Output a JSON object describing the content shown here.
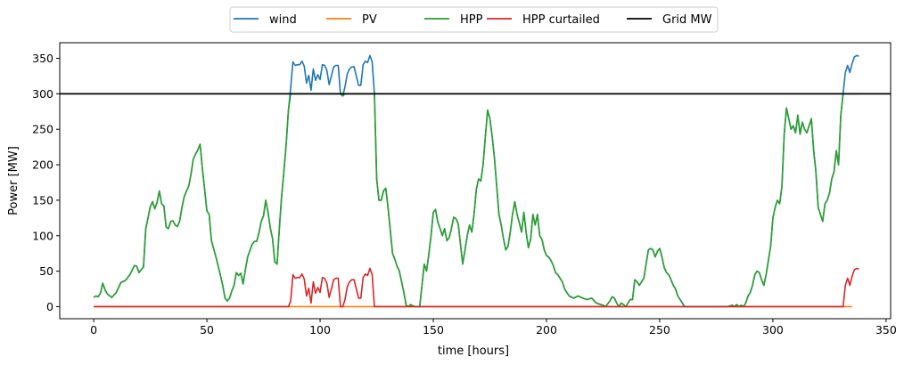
{
  "chart_data": {
    "type": "line",
    "title": "",
    "xlabel": "time [hours]",
    "ylabel": "Power [MW]",
    "xlim": [
      -15,
      352
    ],
    "ylim": [
      -17,
      372
    ],
    "xticks": [
      0,
      50,
      100,
      150,
      200,
      250,
      300,
      350
    ],
    "yticks": [
      0,
      50,
      100,
      150,
      200,
      250,
      300,
      350
    ],
    "grid": false,
    "legend_position": "top-center",
    "legend": [
      "wind",
      "PV",
      "HPP",
      "HPP curtailed",
      "Grid MW"
    ],
    "series": [
      {
        "name": "wind",
        "color": "#1f77b4",
        "points": [
          [
            0,
            13
          ],
          [
            1,
            15
          ],
          [
            2,
            14
          ],
          [
            3,
            19
          ],
          [
            4,
            33
          ],
          [
            5,
            24
          ],
          [
            6,
            18
          ],
          [
            8,
            13
          ],
          [
            10,
            20
          ],
          [
            12,
            34
          ],
          [
            14,
            37
          ],
          [
            16,
            45
          ],
          [
            18,
            58
          ],
          [
            19,
            57
          ],
          [
            20,
            48
          ],
          [
            22,
            56
          ],
          [
            23,
            110
          ],
          [
            24,
            125
          ],
          [
            25,
            141
          ],
          [
            26,
            148
          ],
          [
            27,
            138
          ],
          [
            28,
            147
          ],
          [
            29,
            163
          ],
          [
            30,
            145
          ],
          [
            31,
            142
          ],
          [
            32,
            112
          ],
          [
            33,
            110
          ],
          [
            34,
            120
          ],
          [
            35,
            121
          ],
          [
            36,
            115
          ],
          [
            37,
            113
          ],
          [
            38,
            121
          ],
          [
            39,
            140
          ],
          [
            40,
            155
          ],
          [
            41,
            163
          ],
          [
            42,
            170
          ],
          [
            43,
            187
          ],
          [
            44,
            208
          ],
          [
            45,
            215
          ],
          [
            46,
            221
          ],
          [
            47,
            229
          ],
          [
            48,
            195
          ],
          [
            49,
            165
          ],
          [
            50,
            135
          ],
          [
            51,
            130
          ],
          [
            52,
            93
          ],
          [
            54,
            70
          ],
          [
            56,
            44
          ],
          [
            57,
            30
          ],
          [
            58,
            12
          ],
          [
            59,
            8
          ],
          [
            60,
            12
          ],
          [
            61,
            22
          ],
          [
            62,
            30
          ],
          [
            63,
            48
          ],
          [
            64,
            44
          ],
          [
            65,
            47
          ],
          [
            66,
            32
          ],
          [
            67,
            52
          ],
          [
            68,
            70
          ],
          [
            69,
            79
          ],
          [
            70,
            88
          ],
          [
            71,
            92
          ],
          [
            72,
            92
          ],
          [
            73,
            104
          ],
          [
            74,
            120
          ],
          [
            75,
            128
          ],
          [
            76,
            150
          ],
          [
            77,
            133
          ],
          [
            78,
            111
          ],
          [
            79,
            96
          ],
          [
            80,
            63
          ],
          [
            81,
            60
          ],
          [
            82,
            110
          ],
          [
            83,
            155
          ],
          [
            84,
            190
          ],
          [
            85,
            228
          ],
          [
            86,
            276
          ],
          [
            87,
            308
          ],
          [
            88,
            345
          ],
          [
            89,
            340
          ],
          [
            90,
            341
          ],
          [
            91,
            341
          ],
          [
            92,
            346
          ],
          [
            93,
            339
          ],
          [
            94,
            315
          ],
          [
            95,
            326
          ],
          [
            96,
            305
          ],
          [
            97,
            335
          ],
          [
            98,
            319
          ],
          [
            99,
            327
          ],
          [
            100,
            320
          ],
          [
            101,
            341
          ],
          [
            102,
            340
          ],
          [
            103,
            333
          ],
          [
            104,
            313
          ],
          [
            105,
            325
          ],
          [
            106,
            338
          ],
          [
            107,
            340
          ],
          [
            108,
            340
          ],
          [
            109,
            300
          ],
          [
            110,
            297
          ],
          [
            111,
            310
          ],
          [
            112,
            328
          ],
          [
            113,
            335
          ],
          [
            114,
            338
          ],
          [
            115,
            338
          ],
          [
            116,
            325
          ],
          [
            117,
            312
          ],
          [
            118,
            312
          ],
          [
            119,
            341
          ],
          [
            120,
            346
          ],
          [
            121,
            344
          ],
          [
            122,
            354
          ],
          [
            123,
            345
          ],
          [
            124,
            300
          ],
          [
            125,
            180
          ],
          [
            126,
            150
          ],
          [
            127,
            150
          ],
          [
            128,
            163
          ],
          [
            129,
            167
          ],
          [
            130,
            140
          ],
          [
            131,
            108
          ],
          [
            132,
            75
          ],
          [
            133,
            67
          ],
          [
            134,
            57
          ],
          [
            135,
            50
          ],
          [
            136,
            35
          ],
          [
            137,
            20
          ],
          [
            138,
            2
          ],
          [
            139,
            0
          ],
          [
            140,
            3
          ],
          [
            141,
            1
          ],
          [
            142,
            0
          ],
          [
            144,
            0
          ],
          [
            145,
            30
          ],
          [
            146,
            60
          ],
          [
            147,
            50
          ],
          [
            148,
            73
          ],
          [
            149,
            100
          ],
          [
            150,
            133
          ],
          [
            151,
            137
          ],
          [
            152,
            119
          ],
          [
            153,
            110
          ],
          [
            154,
            100
          ],
          [
            155,
            110
          ],
          [
            156,
            93
          ],
          [
            157,
            97
          ],
          [
            158,
            110
          ],
          [
            159,
            126
          ],
          [
            160,
            124
          ],
          [
            161,
            117
          ],
          [
            162,
            88
          ],
          [
            163,
            60
          ],
          [
            164,
            80
          ],
          [
            165,
            100
          ],
          [
            166,
            115
          ],
          [
            167,
            105
          ],
          [
            168,
            130
          ],
          [
            169,
            165
          ],
          [
            170,
            180
          ],
          [
            171,
            177
          ],
          [
            172,
            200
          ],
          [
            173,
            240
          ],
          [
            174,
            277
          ],
          [
            175,
            265
          ],
          [
            176,
            240
          ],
          [
            177,
            210
          ],
          [
            178,
            170
          ],
          [
            179,
            130
          ],
          [
            180,
            115
          ],
          [
            181,
            96
          ],
          [
            182,
            80
          ],
          [
            183,
            85
          ],
          [
            184,
            105
          ],
          [
            185,
            130
          ],
          [
            186,
            148
          ],
          [
            187,
            130
          ],
          [
            188,
            118
          ],
          [
            189,
            105
          ],
          [
            190,
            133
          ],
          [
            191,
            105
          ],
          [
            192,
            83
          ],
          [
            193,
            95
          ],
          [
            194,
            130
          ],
          [
            195,
            115
          ],
          [
            196,
            130
          ],
          [
            197,
            100
          ],
          [
            198,
            95
          ],
          [
            199,
            80
          ],
          [
            200,
            72
          ],
          [
            201,
            70
          ],
          [
            202,
            65
          ],
          [
            203,
            58
          ],
          [
            204,
            48
          ],
          [
            205,
            45
          ],
          [
            206,
            40
          ],
          [
            207,
            35
          ],
          [
            208,
            25
          ],
          [
            210,
            15
          ],
          [
            212,
            12
          ],
          [
            214,
            15
          ],
          [
            216,
            12
          ],
          [
            218,
            10
          ],
          [
            220,
            12
          ],
          [
            222,
            5
          ],
          [
            224,
            3
          ],
          [
            225,
            2
          ],
          [
            226,
            0
          ],
          [
            228,
            8
          ],
          [
            229,
            14
          ],
          [
            230,
            12
          ],
          [
            231,
            5
          ],
          [
            232,
            0
          ],
          [
            233,
            5
          ],
          [
            234,
            3
          ],
          [
            235,
            0
          ],
          [
            236,
            5
          ],
          [
            237,
            10
          ],
          [
            238,
            10
          ],
          [
            239,
            38
          ],
          [
            240,
            35
          ],
          [
            241,
            30
          ],
          [
            242,
            35
          ],
          [
            243,
            40
          ],
          [
            244,
            60
          ],
          [
            245,
            80
          ],
          [
            246,
            82
          ],
          [
            247,
            80
          ],
          [
            248,
            70
          ],
          [
            249,
            78
          ],
          [
            250,
            82
          ],
          [
            251,
            70
          ],
          [
            252,
            55
          ],
          [
            253,
            48
          ],
          [
            254,
            45
          ],
          [
            255,
            38
          ],
          [
            256,
            30
          ],
          [
            257,
            25
          ],
          [
            258,
            15
          ],
          [
            259,
            10
          ],
          [
            260,
            5
          ],
          [
            261,
            0
          ],
          [
            262,
            0
          ],
          [
            264,
            0
          ],
          [
            270,
            0
          ],
          [
            276,
            0
          ],
          [
            280,
            0
          ],
          [
            282,
            2
          ],
          [
            283,
            0
          ],
          [
            284,
            3
          ],
          [
            285,
            0
          ],
          [
            286,
            2
          ],
          [
            287,
            0
          ],
          [
            288,
            5
          ],
          [
            289,
            15
          ],
          [
            290,
            20
          ],
          [
            291,
            30
          ],
          [
            292,
            45
          ],
          [
            293,
            50
          ],
          [
            294,
            48
          ],
          [
            295,
            38
          ],
          [
            296,
            30
          ],
          [
            297,
            45
          ],
          [
            298,
            65
          ],
          [
            299,
            85
          ],
          [
            300,
            125
          ],
          [
            301,
            140
          ],
          [
            302,
            150
          ],
          [
            303,
            145
          ],
          [
            304,
            170
          ],
          [
            305,
            243
          ],
          [
            306,
            280
          ],
          [
            307,
            265
          ],
          [
            308,
            250
          ],
          [
            309,
            255
          ],
          [
            310,
            245
          ],
          [
            311,
            270
          ],
          [
            312,
            243
          ],
          [
            313,
            260
          ],
          [
            314,
            250
          ],
          [
            315,
            245
          ],
          [
            316,
            255
          ],
          [
            317,
            265
          ],
          [
            318,
            220
          ],
          [
            319,
            190
          ],
          [
            320,
            140
          ],
          [
            321,
            130
          ],
          [
            322,
            120
          ],
          [
            323,
            145
          ],
          [
            324,
            150
          ],
          [
            325,
            160
          ],
          [
            326,
            180
          ],
          [
            327,
            190
          ],
          [
            328,
            220
          ],
          [
            329,
            200
          ],
          [
            330,
            270
          ],
          [
            331,
            300
          ],
          [
            332,
            330
          ],
          [
            333,
            340
          ],
          [
            334,
            330
          ],
          [
            335,
            343
          ],
          [
            336,
            352
          ],
          [
            337,
            354
          ],
          [
            338,
            353
          ]
        ]
      },
      {
        "name": "PV",
        "color": "#ff7f0e",
        "points": [
          [
            0,
            0
          ],
          [
            335,
            0
          ]
        ]
      },
      {
        "name": "HPP",
        "color": "#2ca02c",
        "points": []
      },
      {
        "name": "HPP curtailed",
        "color": "#d62728",
        "points": []
      },
      {
        "name": "Grid MW",
        "color": "#000000",
        "points": [
          [
            -15,
            300
          ],
          [
            352,
            300
          ]
        ]
      }
    ]
  }
}
